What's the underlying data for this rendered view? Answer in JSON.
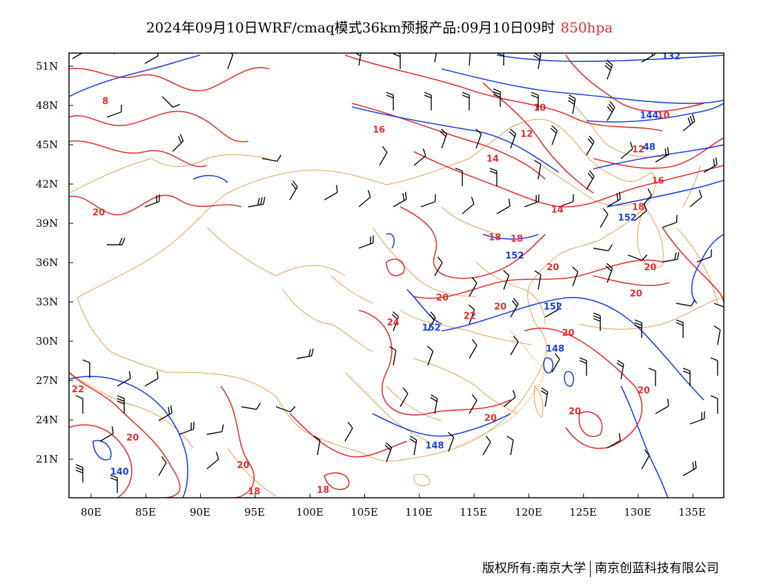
{
  "title": {
    "main": "2024年09月10日WRF/cmaq模式36km预报产品:09月10日09时",
    "level": "850hpa"
  },
  "axes": {
    "lat_labels": [
      "51N",
      "48N",
      "45N",
      "42N",
      "39N",
      "36N",
      "33N",
      "30N",
      "27N",
      "24N",
      "21N"
    ],
    "lon_labels": [
      "80E",
      "85E",
      "90E",
      "95E",
      "100E",
      "105E",
      "110E",
      "115E",
      "120E",
      "125E",
      "130E",
      "135E"
    ]
  },
  "colors": {
    "temperature": "#e03030",
    "height": "#1a3fe0",
    "border": "#e0a050",
    "wind": "#000000"
  },
  "temperature_labels": [
    {
      "text": "8",
      "lon": 81.3,
      "lat": 48.3
    },
    {
      "text": "16",
      "lon": 106.3,
      "lat": 46.1
    },
    {
      "text": "10",
      "lon": 121.0,
      "lat": 47.8
    },
    {
      "text": "12",
      "lon": 119.8,
      "lat": 45.8
    },
    {
      "text": "14",
      "lon": 116.7,
      "lat": 43.9
    },
    {
      "text": "10",
      "lon": 132.3,
      "lat": 47.2
    },
    {
      "text": "12",
      "lon": 130.0,
      "lat": 44.6
    },
    {
      "text": "16",
      "lon": 131.8,
      "lat": 42.2
    },
    {
      "text": "18",
      "lon": 130.0,
      "lat": 40.2
    },
    {
      "text": "14",
      "lon": 122.6,
      "lat": 40.0
    },
    {
      "text": "20",
      "lon": 80.7,
      "lat": 39.8
    },
    {
      "text": "18",
      "lon": 116.9,
      "lat": 37.9
    },
    {
      "text": "18",
      "lon": 118.9,
      "lat": 37.8
    },
    {
      "text": "20",
      "lon": 122.2,
      "lat": 35.6
    },
    {
      "text": "20",
      "lon": 131.1,
      "lat": 35.6
    },
    {
      "text": "20",
      "lon": 129.8,
      "lat": 33.6
    },
    {
      "text": "20",
      "lon": 112.1,
      "lat": 33.3
    },
    {
      "text": "20",
      "lon": 117.4,
      "lat": 32.6
    },
    {
      "text": "22",
      "lon": 114.6,
      "lat": 31.9
    },
    {
      "text": "24",
      "lon": 107.6,
      "lat": 31.4
    },
    {
      "text": "20",
      "lon": 123.6,
      "lat": 30.6
    },
    {
      "text": "22",
      "lon": 78.8,
      "lat": 26.3
    },
    {
      "text": "20",
      "lon": 130.5,
      "lat": 26.2
    },
    {
      "text": "20",
      "lon": 124.2,
      "lat": 24.6
    },
    {
      "text": "20",
      "lon": 116.5,
      "lat": 24.1
    },
    {
      "text": "20",
      "lon": 83.8,
      "lat": 22.6
    },
    {
      "text": "20",
      "lon": 93.9,
      "lat": 20.5
    },
    {
      "text": "18",
      "lon": 94.9,
      "lat": 18.5
    },
    {
      "text": "18",
      "lon": 101.2,
      "lat": 18.6
    }
  ],
  "height_labels": [
    {
      "text": "132",
      "lon": 133.0,
      "lat": 51.7
    },
    {
      "text": "144",
      "lon": 131.0,
      "lat": 47.2
    },
    {
      "text": "48",
      "lon": 131.0,
      "lat": 44.8
    },
    {
      "text": "152",
      "lon": 129.0,
      "lat": 39.4
    },
    {
      "text": "152",
      "lon": 118.7,
      "lat": 36.5
    },
    {
      "text": "152",
      "lon": 122.2,
      "lat": 32.6
    },
    {
      "text": "152",
      "lon": 111.1,
      "lat": 31.0
    },
    {
      "text": "148",
      "lon": 122.4,
      "lat": 29.4
    },
    {
      "text": "148",
      "lon": 111.4,
      "lat": 22.0
    },
    {
      "text": "140",
      "lon": 82.6,
      "lat": 20.0
    }
  ],
  "copyright": {
    "left": "版权所有:南京大学",
    "right": "南京创蓝科技有限公司"
  }
}
